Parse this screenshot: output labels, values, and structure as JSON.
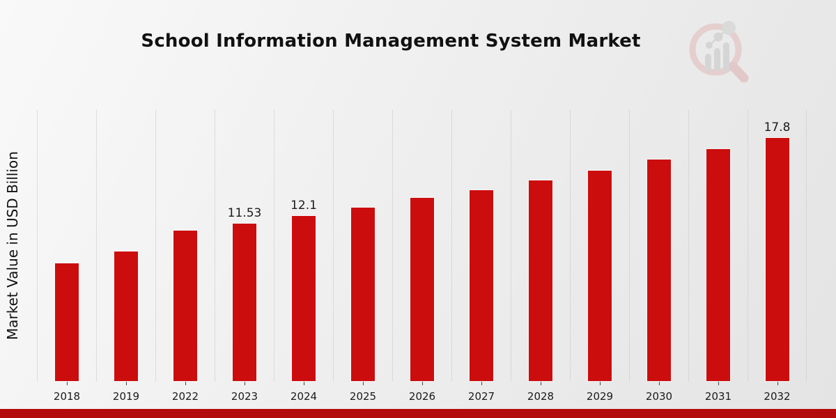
{
  "page": {
    "footer_bar_color": "#b20c0c",
    "background_color": "#efefef"
  },
  "logo": {
    "icon": "magnifier-bar-chart-watermark"
  },
  "chart_data": {
    "type": "bar",
    "title": "School Information Management System Market",
    "xlabel": "",
    "ylabel": "Market Value in USD Billion",
    "categories": [
      "2018",
      "2019",
      "2022",
      "2023",
      "2024",
      "2025",
      "2026",
      "2027",
      "2028",
      "2029",
      "2030",
      "2031",
      "2032"
    ],
    "values": [
      8.6,
      9.5,
      11.0,
      11.53,
      12.1,
      12.7,
      13.4,
      14.0,
      14.7,
      15.4,
      16.2,
      17.0,
      17.8
    ],
    "labeled_points": [
      {
        "category": "2023",
        "label": "11.53"
      },
      {
        "category": "2024",
        "label": "12.1"
      },
      {
        "category": "2032",
        "label": "17.8"
      }
    ],
    "ylim": [
      0,
      19.84
    ],
    "bar_color": "#cc0d0d",
    "grid": "vertical-dotted",
    "legend": "none"
  }
}
